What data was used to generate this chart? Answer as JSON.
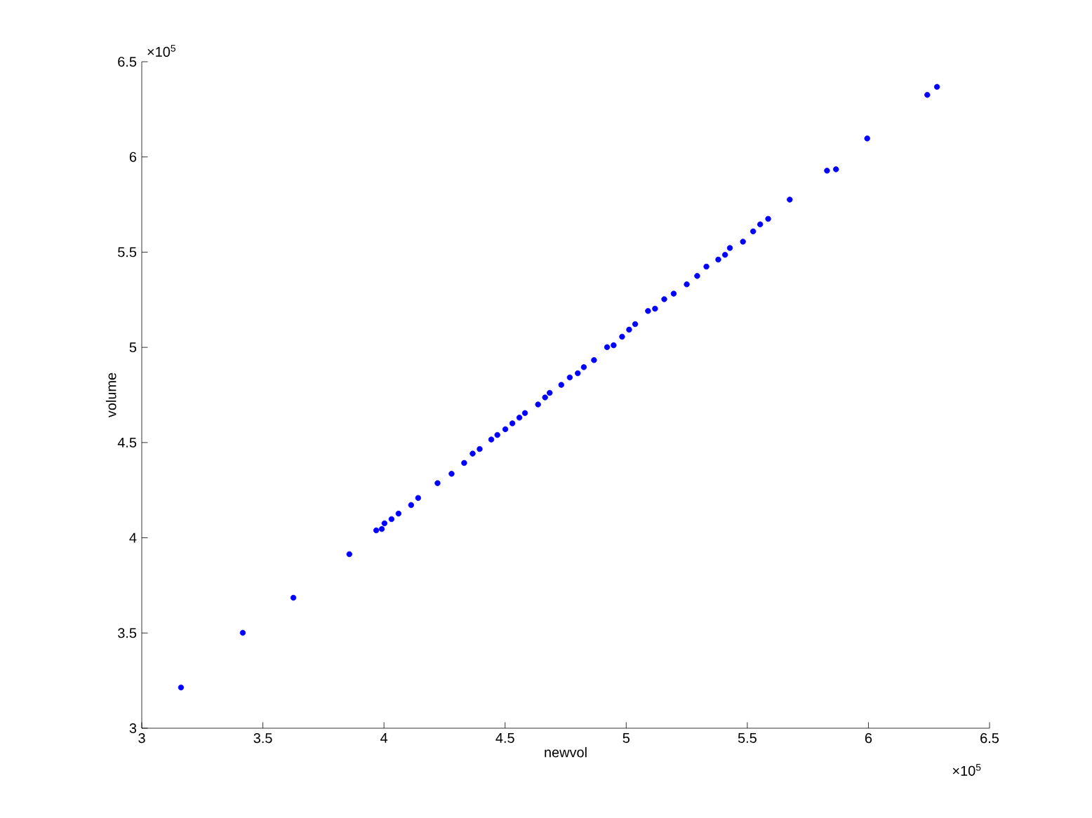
{
  "chart_data": {
    "type": "scatter",
    "xlabel": "newvol",
    "ylabel": "volume",
    "annotations": [
      "×10$^{5}$",
      "×10$^{5}$"
    ],
    "x": [
      3.162,
      3.417,
      3.626,
      3.857,
      3.968,
      3.991,
      4.002,
      4.031,
      4.06,
      4.112,
      4.141,
      4.221,
      4.279,
      4.331,
      4.366,
      4.395,
      4.443,
      4.468,
      4.501,
      4.53,
      4.559,
      4.582,
      4.636,
      4.665,
      4.684,
      4.732,
      4.767,
      4.8,
      4.825,
      4.867,
      4.921,
      4.948,
      4.983,
      5.012,
      5.037,
      5.09,
      5.119,
      5.157,
      5.196,
      5.25,
      5.293,
      5.331,
      5.38,
      5.408,
      5.428,
      5.482,
      5.524,
      5.553,
      5.586,
      5.675,
      5.829,
      5.866,
      5.995,
      6.243,
      6.283
    ],
    "series": [
      {
        "color": "#0000ff",
        "values": [
          3.214,
          3.501,
          3.685,
          3.914,
          4.039,
          4.046,
          4.076,
          4.098,
          4.127,
          4.172,
          4.209,
          4.287,
          4.336,
          4.393,
          4.442,
          4.466,
          4.516,
          4.54,
          4.57,
          4.601,
          4.631,
          4.655,
          4.7,
          4.737,
          4.761,
          4.803,
          4.842,
          4.864,
          4.896,
          4.933,
          5.001,
          5.011,
          5.056,
          5.093,
          5.122,
          5.191,
          5.203,
          5.253,
          5.282,
          5.331,
          5.375,
          5.424,
          5.461,
          5.486,
          5.522,
          5.555,
          5.609,
          5.646,
          5.675,
          5.776,
          5.928,
          5.935,
          6.097,
          6.326,
          6.368
        ]
      }
    ],
    "xlim": [
      3,
      6.5
    ],
    "ylim": [
      3,
      6.5
    ],
    "xticks": [
      3,
      3.5,
      4,
      4.5,
      5,
      5.5,
      6,
      6.5
    ],
    "yticks": [
      3,
      3.5,
      4,
      4.5,
      5,
      5.5,
      6,
      6.5
    ],
    "grid": false
  }
}
